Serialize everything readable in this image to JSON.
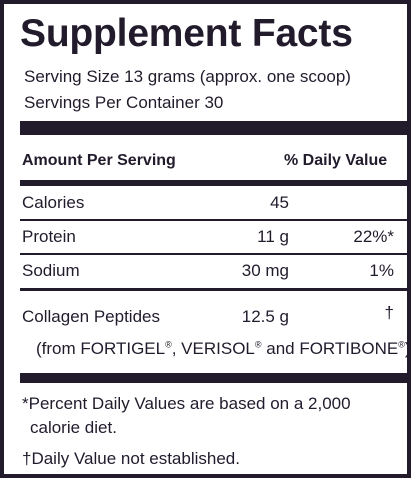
{
  "title": "Supplement Facts",
  "serving_size": "Serving Size 13 grams (approx. one scoop)",
  "servings_per_container": "Servings Per Container 30",
  "header": {
    "amount_per_serving": "Amount Per Serving",
    "daily_value": "% Daily Value"
  },
  "rows": [
    {
      "name": "Calories",
      "amount": "45",
      "dv": ""
    },
    {
      "name": "Protein",
      "amount": "11 g",
      "dv": "22%*"
    },
    {
      "name": "Sodium",
      "amount": "30 mg",
      "dv": "1%"
    },
    {
      "name": "Collagen Peptides",
      "amount": "12.5 g",
      "dv": "†"
    }
  ],
  "source": {
    "prefix": "(from FORTIGEL",
    "mark1": "®",
    "mid1": ", VERISOL",
    "mark2": "®",
    "mid2": " and FORTIBONE",
    "mark3": "®",
    "suffix": ")"
  },
  "footnotes": {
    "percent_line1": "*Percent Daily Values are based on a 2,000",
    "percent_line2": "calorie diet.",
    "dagger": "†Daily Value not established."
  },
  "colors": {
    "ink": "#221b2c",
    "background": "#ffffff"
  }
}
